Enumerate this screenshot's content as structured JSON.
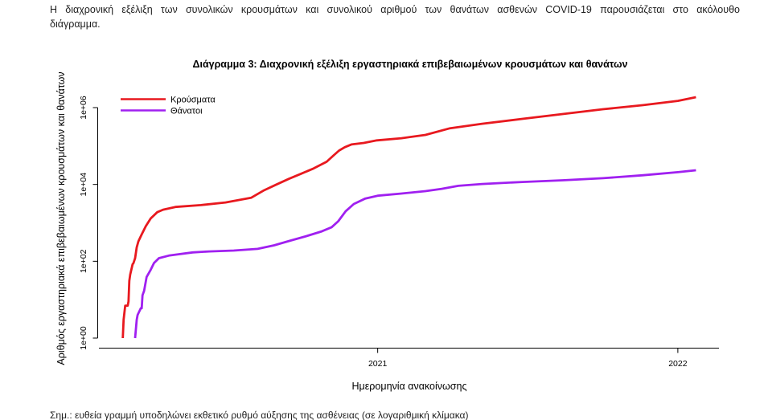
{
  "intro": {
    "line1": "Η διαχρονική εξέλιξη των συνολικών κρουσμάτων και συνολικού αριθμού των θανάτων ασθενών COVID-19 παρουσιάζεται στο ακόλουθο",
    "line2": "διάγραμμα."
  },
  "chart_data": {
    "type": "line",
    "title": "Διάγραμμα 3: Διαχρονική εξέλιξη εργαστηριακά επιβεβαιωμένων κρουσμάτων και θανάτων",
    "xlabel": "Ημερομηνία ανακοίνωσης",
    "ylabel": "Αριθμός εργαστηριακά επιβεβαιωμένων κρουσμάτων και θανάτων",
    "y_scale": "log",
    "ylim": [
      1,
      1000000
    ],
    "y_ticks": [
      {
        "value": 1,
        "label": "1e+00"
      },
      {
        "value": 100,
        "label": "1e+02"
      },
      {
        "value": 10000,
        "label": "1e+04"
      },
      {
        "value": 1000000,
        "label": "1e+06"
      }
    ],
    "xlim": [
      "2020-01-28",
      "2022-02-20"
    ],
    "x_ticks": [
      {
        "value": "2021-01-01",
        "label": "2021"
      },
      {
        "value": "2022-01-01",
        "label": "2022"
      }
    ],
    "grid": false,
    "legend": "top-left",
    "series": [
      {
        "name": "Κρούσματα",
        "color": "#e8191f",
        "points": [
          [
            "2020-02-26",
            1
          ],
          [
            "2020-02-27",
            3
          ],
          [
            "2020-02-29",
            7
          ],
          [
            "2020-03-03",
            7
          ],
          [
            "2020-03-04",
            9
          ],
          [
            "2020-03-05",
            31
          ],
          [
            "2020-03-06",
            45
          ],
          [
            "2020-03-09",
            84
          ],
          [
            "2020-03-10",
            89
          ],
          [
            "2020-03-12",
            120
          ],
          [
            "2020-03-14",
            230
          ],
          [
            "2020-03-16",
            330
          ],
          [
            "2020-03-20",
            500
          ],
          [
            "2020-03-25",
            820
          ],
          [
            "2020-03-31",
            1300
          ],
          [
            "2020-04-08",
            1900
          ],
          [
            "2020-04-15",
            2200
          ],
          [
            "2020-04-30",
            2600
          ],
          [
            "2020-05-31",
            2900
          ],
          [
            "2020-06-30",
            3400
          ],
          [
            "2020-07-31",
            4500
          ],
          [
            "2020-08-15",
            6900
          ],
          [
            "2020-08-31",
            10000
          ],
          [
            "2020-09-15",
            14000
          ],
          [
            "2020-09-30",
            19000
          ],
          [
            "2020-10-15",
            26000
          ],
          [
            "2020-10-31",
            39000
          ],
          [
            "2020-11-08",
            56000
          ],
          [
            "2020-11-15",
            76000
          ],
          [
            "2020-11-22",
            93000
          ],
          [
            "2020-11-30",
            110000
          ],
          [
            "2020-12-15",
            120000
          ],
          [
            "2020-12-31",
            140000
          ],
          [
            "2021-01-30",
            160000
          ],
          [
            "2021-02-28",
            195000
          ],
          [
            "2021-03-30",
            290000
          ],
          [
            "2021-05-08",
            380000
          ],
          [
            "2021-06-26",
            510000
          ],
          [
            "2021-08-14",
            680000
          ],
          [
            "2021-10-02",
            910000
          ],
          [
            "2021-11-20",
            1160000
          ],
          [
            "2022-01-01",
            1500000
          ],
          [
            "2022-01-23",
            1870000
          ]
        ]
      },
      {
        "name": "Θάνατοι",
        "color": "#a020f0",
        "points": [
          [
            "2020-03-12",
            1
          ],
          [
            "2020-03-14",
            3
          ],
          [
            "2020-03-15",
            4
          ],
          [
            "2020-03-19",
            6
          ],
          [
            "2020-03-20",
            6
          ],
          [
            "2020-03-21",
            13
          ],
          [
            "2020-03-23",
            17
          ],
          [
            "2020-03-26",
            39
          ],
          [
            "2020-03-31",
            60
          ],
          [
            "2020-04-04",
            90
          ],
          [
            "2020-04-10",
            120
          ],
          [
            "2020-04-22",
            140
          ],
          [
            "2020-05-02",
            150
          ],
          [
            "2020-05-21",
            170
          ],
          [
            "2020-06-10",
            180
          ],
          [
            "2020-07-10",
            190
          ],
          [
            "2020-08-08",
            210
          ],
          [
            "2020-08-28",
            260
          ],
          [
            "2020-09-16",
            340
          ],
          [
            "2020-10-06",
            450
          ],
          [
            "2020-10-25",
            600
          ],
          [
            "2020-11-06",
            770
          ],
          [
            "2020-11-14",
            1100
          ],
          [
            "2020-11-23",
            2000
          ],
          [
            "2020-12-03",
            3100
          ],
          [
            "2020-12-17",
            4300
          ],
          [
            "2021-01-01",
            5100
          ],
          [
            "2021-01-30",
            5800
          ],
          [
            "2021-02-28",
            6700
          ],
          [
            "2021-03-20",
            7700
          ],
          [
            "2021-04-09",
            9200
          ],
          [
            "2021-05-08",
            10300
          ],
          [
            "2021-06-26",
            11600
          ],
          [
            "2021-08-14",
            12800
          ],
          [
            "2021-10-02",
            14500
          ],
          [
            "2021-11-20",
            17400
          ],
          [
            "2022-01-01",
            20900
          ],
          [
            "2022-01-23",
            23400
          ]
        ]
      }
    ]
  },
  "footnote": "Σημ.: ευθεία γραμμή υποδηλώνει εκθετικό ρυθμό αύξησης της ασθένειας (σε λογαριθμική κλίμακα)"
}
